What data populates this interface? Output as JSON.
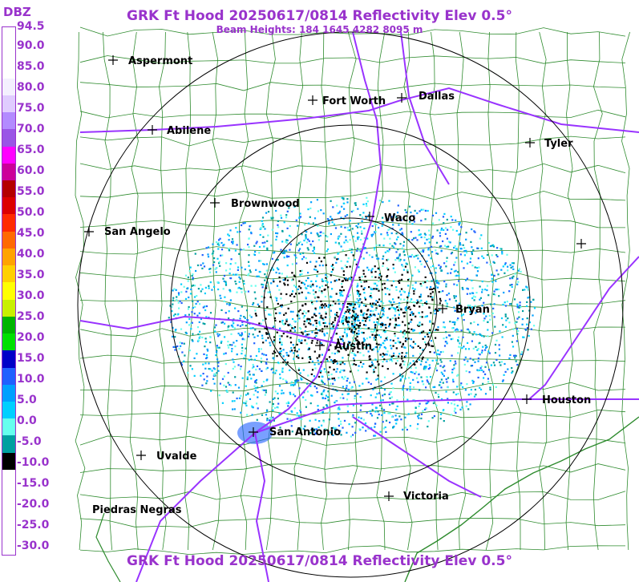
{
  "header": {
    "title": "GRK Ft Hood 20250617/0814 Reflectivity Elev 0.5°",
    "subtitle": "Beam Heights: 184 1645 4282 8095 m",
    "footer_title": "GRK Ft Hood 20250617/0814 Reflectivity Elev 0.5°"
  },
  "legend": {
    "unit": "DBZ",
    "labels": [
      "94.5",
      "90.0",
      "85.0",
      "80.0",
      "75.0",
      "70.0",
      "65.0",
      "60.0",
      "55.0",
      "50.0",
      "45.0",
      "40.0",
      "35.0",
      "30.0",
      "25.0",
      "20.0",
      "15.0",
      "10.0",
      "5.0",
      "0.0",
      "-5.0",
      "-10.0",
      "-15.0",
      "-20.0",
      "-25.0",
      "-30.0"
    ],
    "colors": [
      "#ffffff",
      "#ffffff",
      "#ffffff",
      "#f4f0ff",
      "#e0ccff",
      "#b38bff",
      "#9a55e6",
      "#ff00ff",
      "#cc0099",
      "#b40000",
      "#dc0000",
      "#ff2a00",
      "#ff6a00",
      "#ffa300",
      "#ffd000",
      "#ffff00",
      "#c8f000",
      "#00b400",
      "#00e000",
      "#0000c8",
      "#2060ff",
      "#00a0ff",
      "#00d0ff",
      "#66ffee",
      "#00a0a0",
      "#000000",
      "#ffffff",
      "#ffffff",
      "#ffffff",
      "#ffffff",
      "#ffffff"
    ]
  },
  "map": {
    "radar_site": "GRK",
    "ring_color": "#000000",
    "county_color": "#2e8b2e",
    "highway_color": "#9933ff",
    "cities": [
      {
        "name": "Aspermont"
      },
      {
        "name": "Abilene"
      },
      {
        "name": "Fort Worth"
      },
      {
        "name": "Dallas"
      },
      {
        "name": "Tyler"
      },
      {
        "name": "Brownwood"
      },
      {
        "name": "Waco"
      },
      {
        "name": "San Angelo"
      },
      {
        "name": "Bryan"
      },
      {
        "name": "Austin"
      },
      {
        "name": "Houston"
      },
      {
        "name": "San Antonio"
      },
      {
        "name": "Uvalde"
      },
      {
        "name": "Victoria"
      },
      {
        "name": "Piedras Negras"
      }
    ]
  }
}
